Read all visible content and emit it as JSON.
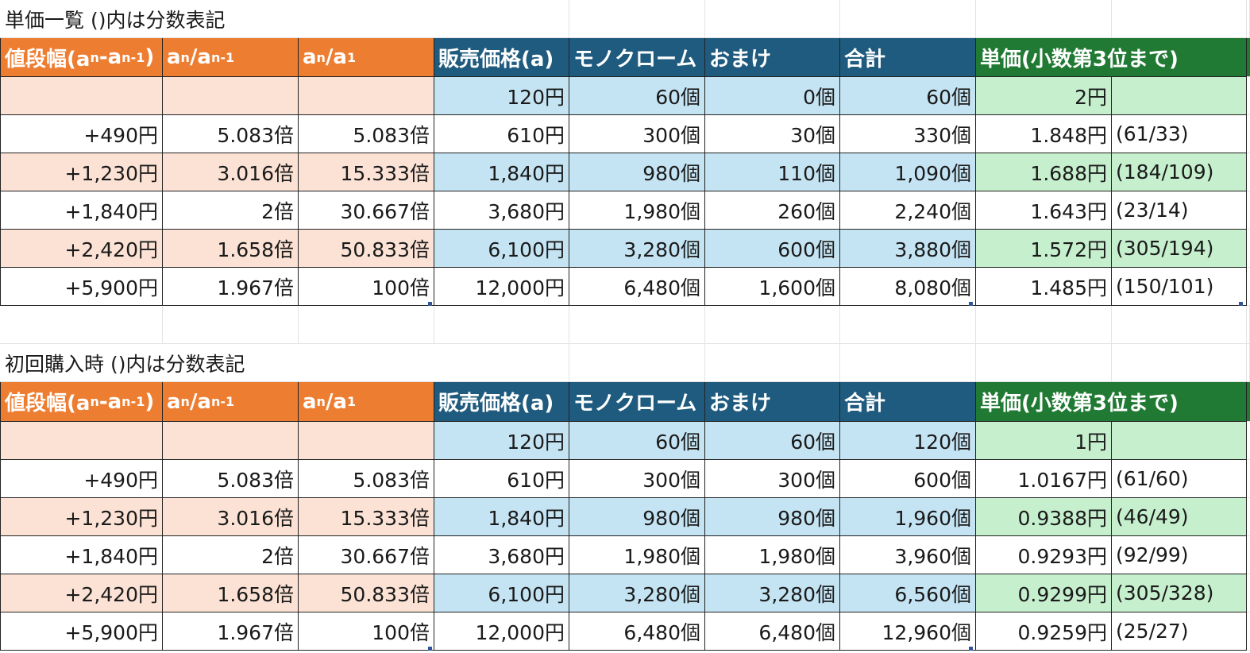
{
  "tables": [
    {
      "title": "単価一覧 ()内は分数表記",
      "base": [
        "",
        "",
        "",
        "120円",
        "60個",
        "0個",
        "60個",
        "2円",
        ""
      ],
      "rows": [
        [
          "+490円",
          "5.083倍",
          "5.083倍",
          "610円",
          "300個",
          "30個",
          "330個",
          "1.848円",
          "(61/33)"
        ],
        [
          "+1,230円",
          "3.016倍",
          "15.333倍",
          "1,840円",
          "980個",
          "110個",
          "1,090個",
          "1.688円",
          "(184/109)"
        ],
        [
          "+1,840円",
          "2倍",
          "30.667倍",
          "3,680円",
          "1,980個",
          "260個",
          "2,240個",
          "1.643円",
          "(23/14)"
        ],
        [
          "+2,420円",
          "1.658倍",
          "50.833倍",
          "6,100円",
          "3,280個",
          "600個",
          "3,880個",
          "1.572円",
          "(305/194)"
        ],
        [
          "+5,900円",
          "1.967倍",
          "100倍",
          "12,000円",
          "6,480個",
          "1,600個",
          "8,080個",
          "1.485円",
          "(150/101)"
        ]
      ]
    },
    {
      "title": "初回購入時 ()内は分数表記",
      "base": [
        "",
        "",
        "",
        "120円",
        "60個",
        "60個",
        "120個",
        "1円",
        ""
      ],
      "rows": [
        [
          "+490円",
          "5.083倍",
          "5.083倍",
          "610円",
          "300個",
          "300個",
          "600個",
          "1.0167円",
          "(61/60)"
        ],
        [
          "+1,230円",
          "3.016倍",
          "15.333倍",
          "1,840円",
          "980個",
          "980個",
          "1,960個",
          "0.9388円",
          "(46/49)"
        ],
        [
          "+1,840円",
          "2倍",
          "30.667倍",
          "3,680円",
          "1,980個",
          "1,980個",
          "3,960個",
          "0.9293円",
          "(92/99)"
        ],
        [
          "+2,420円",
          "1.658倍",
          "50.833倍",
          "6,100円",
          "3,280個",
          "3,280個",
          "6,560個",
          "0.9299円",
          "(305/328)"
        ],
        [
          "+5,900円",
          "1.967倍",
          "100倍",
          "12,000円",
          "6,480個",
          "6,480個",
          "12,960個",
          "0.9259円",
          "(25/27)"
        ]
      ]
    }
  ],
  "headers": {
    "h0": {
      "main": "値段幅(a",
      "s1": "n",
      "mid": "-a",
      "s2": "n-1",
      "end": ")"
    },
    "h1": {
      "main": "a",
      "s1": "n",
      "mid": "/a",
      "s2": "n-1",
      "end": ""
    },
    "h2": {
      "main": "a",
      "s1": "n",
      "mid": "/a",
      "s2": "1",
      "end": ""
    },
    "h3": "販売価格(a)",
    "h4": "モノクローム",
    "h5": "おまけ",
    "h6": "合計",
    "h7": "単価(小数第3位まで)"
  },
  "colors": {
    "orange_header": "#ed7d31",
    "blue_header": "#1f5b7e",
    "green_header": "#217a33",
    "orange_fill": "#fbe2d5",
    "blue_fill": "#c5e4f3",
    "green_fill": "#c6efce"
  }
}
